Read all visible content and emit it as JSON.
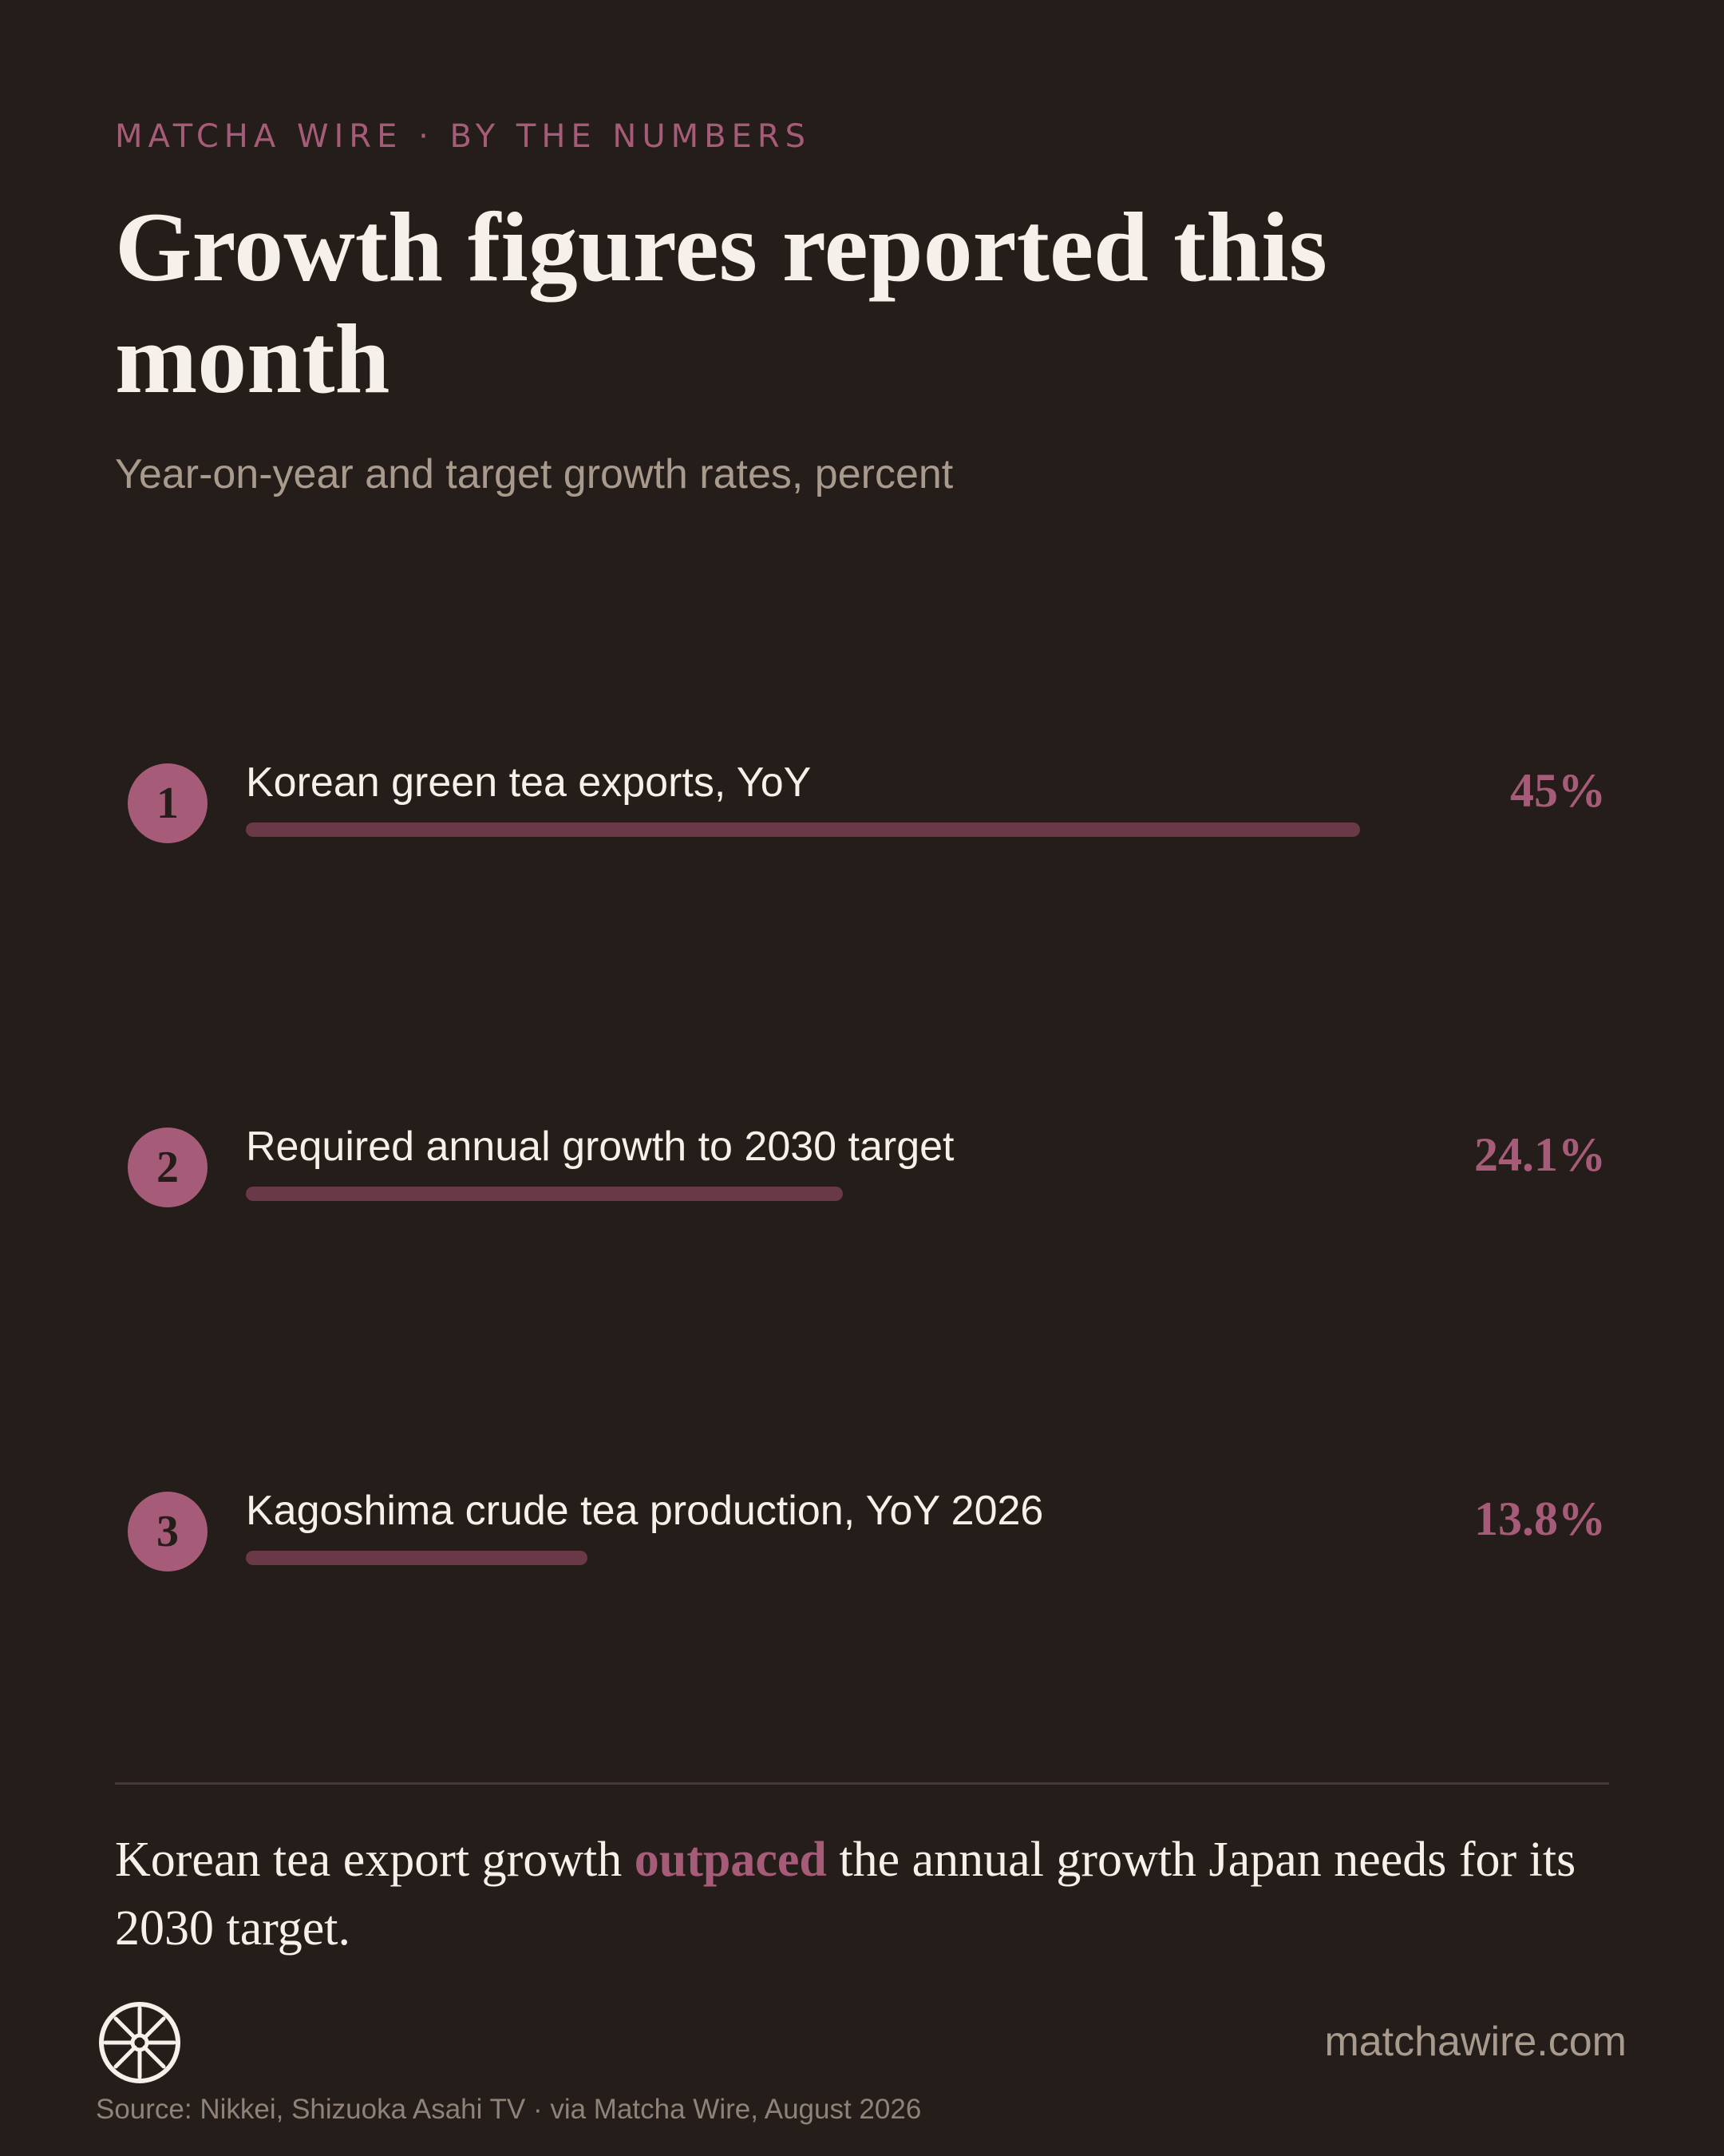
{
  "header": {
    "kicker": "MATCHA WIRE · BY THE NUMBERS",
    "title": "Growth figures reported this month",
    "subtitle": "Year-on-year and target growth rates, percent"
  },
  "chart_data": {
    "type": "bar",
    "orientation": "horizontal",
    "categories": [
      "Korean green tea exports, YoY",
      "Required annual growth to 2030 target",
      "Kagoshima crude tea production, YoY 2026"
    ],
    "values": [
      45,
      24.1,
      13.8
    ],
    "value_labels": [
      "45%",
      "24.1%",
      "13.8%"
    ],
    "ranks": [
      "1",
      "2",
      "3"
    ],
    "ylim": [
      0,
      45
    ],
    "colors": {
      "accent": "#a65c78",
      "bar": "#693947",
      "background": "#241d19",
      "text": "#f6f0ea"
    }
  },
  "takeaway": {
    "before": "Korean tea export growth ",
    "highlight": "outpaced",
    "after": " the annual growth Japan needs for its 2030 target."
  },
  "footer": {
    "logo_icon": "wheel-logo-icon",
    "site": "matchawire.com",
    "source": "Source: Nikkei, Shizuoka Asahi TV · via Matcha Wire, August 2026"
  }
}
